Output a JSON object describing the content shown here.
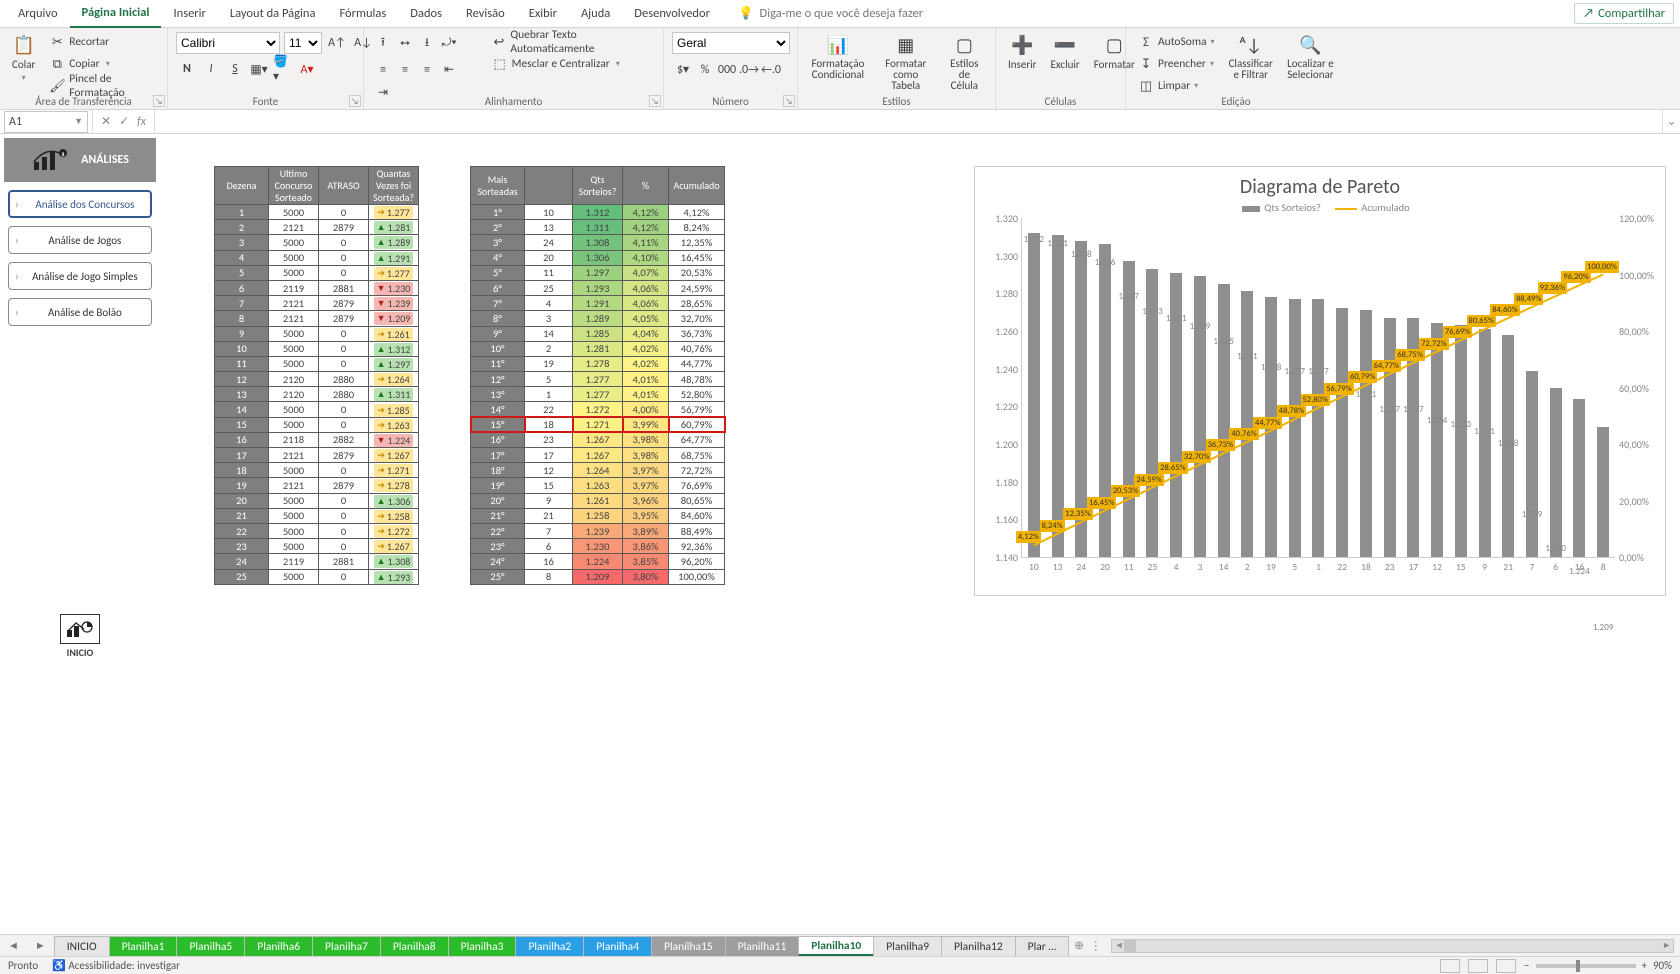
{
  "menu": {
    "items": [
      "Arquivo",
      "Página Inicial",
      "Inserir",
      "Layout da Página",
      "Fórmulas",
      "Dados",
      "Revisão",
      "Exibir",
      "Ajuda",
      "Desenvolvedor"
    ],
    "active_index": 1,
    "tell_me_placeholder": "Diga-me o que você deseja fazer",
    "share_label": "Compartilhar"
  },
  "ribbon": {
    "clipboard": {
      "group": "Área de Transferência",
      "paste": "Colar",
      "cut": "Recortar",
      "copy": "Copiar",
      "painter": "Pincel de Formatação"
    },
    "font": {
      "group": "Fonte",
      "name": "Calibri",
      "size": "11"
    },
    "alignment": {
      "group": "Alinhamento",
      "wrap": "Quebrar Texto Automaticamente",
      "merge": "Mesclar e Centralizar"
    },
    "number": {
      "group": "Número",
      "format": "Geral"
    },
    "styles": {
      "group": "Estilos",
      "cond": "Formatação Condicional",
      "table": "Formatar como Tabela",
      "cell": "Estilos de Célula"
    },
    "cells": {
      "group": "Células",
      "insert": "Inserir",
      "delete": "Excluir",
      "format": "Formatar"
    },
    "editing": {
      "group": "Edição",
      "autosum": "AutoSoma",
      "fill": "Preencher",
      "clear": "Limpar",
      "sort": "Classificar e Filtrar",
      "find": "Localizar e Selecionar"
    }
  },
  "formula_bar": {
    "cell": "A1",
    "value": ""
  },
  "side_panel": {
    "title": "ANÁLISES",
    "buttons": [
      {
        "label": "Análise dos Concursos",
        "active": true
      },
      {
        "label": "Análise de Jogos",
        "active": false
      },
      {
        "label": "Análise de Jogo Simples",
        "active": false
      },
      {
        "label": "Análise de Bolão",
        "active": false
      }
    ],
    "home_label": "INICIO"
  },
  "table_left": {
    "headers": [
      "Dezena",
      "Ultimo Concurso Sorteado",
      "ATRASO",
      "Quantas Vezes foi Sorteada?"
    ],
    "rows": [
      {
        "d": "1",
        "uc": "5000",
        "at": "0",
        "tag": "1.277",
        "dir": "fl"
      },
      {
        "d": "2",
        "uc": "2121",
        "at": "2879",
        "tag": "1.281",
        "dir": "up"
      },
      {
        "d": "3",
        "uc": "5000",
        "at": "0",
        "tag": "1.289",
        "dir": "up"
      },
      {
        "d": "4",
        "uc": "5000",
        "at": "0",
        "tag": "1.291",
        "dir": "up"
      },
      {
        "d": "5",
        "uc": "5000",
        "at": "0",
        "tag": "1.277",
        "dir": "fl"
      },
      {
        "d": "6",
        "uc": "2119",
        "at": "2881",
        "tag": "1.230",
        "dir": "dn"
      },
      {
        "d": "7",
        "uc": "2121",
        "at": "2879",
        "tag": "1.239",
        "dir": "dn"
      },
      {
        "d": "8",
        "uc": "2121",
        "at": "2879",
        "tag": "1.209",
        "dir": "dn"
      },
      {
        "d": "9",
        "uc": "5000",
        "at": "0",
        "tag": "1.261",
        "dir": "fl"
      },
      {
        "d": "10",
        "uc": "5000",
        "at": "0",
        "tag": "1.312",
        "dir": "up"
      },
      {
        "d": "11",
        "uc": "5000",
        "at": "0",
        "tag": "1.297",
        "dir": "up"
      },
      {
        "d": "12",
        "uc": "2120",
        "at": "2880",
        "tag": "1.264",
        "dir": "fl"
      },
      {
        "d": "13",
        "uc": "2120",
        "at": "2880",
        "tag": "1.311",
        "dir": "up"
      },
      {
        "d": "14",
        "uc": "5000",
        "at": "0",
        "tag": "1.285",
        "dir": "fl"
      },
      {
        "d": "15",
        "uc": "5000",
        "at": "0",
        "tag": "1.263",
        "dir": "fl"
      },
      {
        "d": "16",
        "uc": "2118",
        "at": "2882",
        "tag": "1.224",
        "dir": "dn"
      },
      {
        "d": "17",
        "uc": "2121",
        "at": "2879",
        "tag": "1.267",
        "dir": "fl"
      },
      {
        "d": "18",
        "uc": "5000",
        "at": "0",
        "tag": "1.271",
        "dir": "fl"
      },
      {
        "d": "19",
        "uc": "2121",
        "at": "2879",
        "tag": "1.278",
        "dir": "fl"
      },
      {
        "d": "20",
        "uc": "5000",
        "at": "0",
        "tag": "1.306",
        "dir": "up"
      },
      {
        "d": "21",
        "uc": "5000",
        "at": "0",
        "tag": "1.258",
        "dir": "fl"
      },
      {
        "d": "22",
        "uc": "5000",
        "at": "0",
        "tag": "1.272",
        "dir": "fl"
      },
      {
        "d": "23",
        "uc": "5000",
        "at": "0",
        "tag": "1.267",
        "dir": "fl"
      },
      {
        "d": "24",
        "uc": "2119",
        "at": "2881",
        "tag": "1.308",
        "dir": "up"
      },
      {
        "d": "25",
        "uc": "5000",
        "at": "0",
        "tag": "1.293",
        "dir": "up"
      }
    ]
  },
  "table_right": {
    "headers": [
      "Mais Sorteadas",
      "Qts Sorteios?",
      "%",
      "Acumulado"
    ],
    "highlight_rank": "15°",
    "rows": [
      {
        "rk": "1°",
        "d": "10",
        "s": "1.312",
        "p": "4,12%",
        "a": "4,12%",
        "sc": "#63be7b",
        "pc": "#9cd17f",
        "ac": "#ffffff"
      },
      {
        "rk": "2°",
        "d": "13",
        "s": "1.311",
        "p": "4,12%",
        "a": "8,24%",
        "sc": "#67bf7b",
        "pc": "#a0d280",
        "ac": "#ffffff"
      },
      {
        "rk": "3°",
        "d": "24",
        "s": "1.308",
        "p": "4,11%",
        "a": "12,35%",
        "sc": "#73c37c",
        "pc": "#a8d581",
        "ac": "#ffffff"
      },
      {
        "rk": "4°",
        "d": "20",
        "s": "1.306",
        "p": "4,10%",
        "a": "16,45%",
        "sc": "#7ac57c",
        "pc": "#aed882",
        "ac": "#ffffff"
      },
      {
        "rk": "5°",
        "d": "11",
        "s": "1.297",
        "p": "4,07%",
        "a": "20,53%",
        "sc": "#9cd17f",
        "pc": "#c7e184",
        "ac": "#ffffff"
      },
      {
        "rk": "6°",
        "d": "25",
        "s": "1.293",
        "p": "4,06%",
        "a": "24,59%",
        "sc": "#acd780",
        "pc": "#d3e585",
        "ac": "#ffffff"
      },
      {
        "rk": "7°",
        "d": "4",
        "s": "1.291",
        "p": "4,06%",
        "a": "28,65%",
        "sc": "#b4d981",
        "pc": "#d9e786",
        "ac": "#ffffff"
      },
      {
        "rk": "8°",
        "d": "3",
        "s": "1.289",
        "p": "4,05%",
        "a": "32,70%",
        "sc": "#bbdc82",
        "pc": "#dee986",
        "ac": "#ffffff"
      },
      {
        "rk": "9°",
        "d": "14",
        "s": "1.285",
        "p": "4,04%",
        "a": "36,73%",
        "sc": "#cbe184",
        "pc": "#e9ed87",
        "ac": "#ffffff"
      },
      {
        "rk": "10°",
        "d": "2",
        "s": "1.281",
        "p": "4,02%",
        "a": "40,76%",
        "sc": "#dae785",
        "pc": "#f4f187",
        "ac": "#ffffff"
      },
      {
        "rk": "11°",
        "d": "19",
        "s": "1.278",
        "p": "4,02%",
        "a": "44,77%",
        "sc": "#e5eb86",
        "pc": "#fdf387",
        "ac": "#ffffff"
      },
      {
        "rk": "12°",
        "d": "5",
        "s": "1.277",
        "p": "4,01%",
        "a": "48,78%",
        "sc": "#e9ed87",
        "pc": "#fef186",
        "ac": "#ffffff"
      },
      {
        "rk": "13°",
        "d": "1",
        "s": "1.277",
        "p": "4,01%",
        "a": "52,80%",
        "sc": "#e9ed87",
        "pc": "#fef186",
        "ac": "#ffffff"
      },
      {
        "rk": "14°",
        "d": "22",
        "s": "1.272",
        "p": "4,00%",
        "a": "56,79%",
        "sc": "#fdf387",
        "pc": "#feea84",
        "ac": "#ffffff"
      },
      {
        "rk": "15°",
        "d": "18",
        "s": "1.271",
        "p": "3,99%",
        "a": "60,79%",
        "sc": "#fef186",
        "pc": "#fee783",
        "ac": "#ffffff"
      },
      {
        "rk": "16°",
        "d": "23",
        "s": "1.267",
        "p": "3,98%",
        "a": "64,77%",
        "sc": "#fee883",
        "pc": "#fde081",
        "ac": "#ffffff"
      },
      {
        "rk": "17°",
        "d": "17",
        "s": "1.267",
        "p": "3,98%",
        "a": "68,75%",
        "sc": "#fee883",
        "pc": "#fde081",
        "ac": "#ffffff"
      },
      {
        "rk": "18°",
        "d": "12",
        "s": "1.264",
        "p": "3,97%",
        "a": "72,72%",
        "sc": "#fee182",
        "pc": "#fcd980",
        "ac": "#ffffff"
      },
      {
        "rk": "19°",
        "d": "15",
        "s": "1.263",
        "p": "3,97%",
        "a": "76,69%",
        "sc": "#fddf81",
        "pc": "#fcd77f",
        "ac": "#ffffff"
      },
      {
        "rk": "20°",
        "d": "9",
        "s": "1.261",
        "p": "3,96%",
        "a": "80,65%",
        "sc": "#fcda80",
        "pc": "#fcd37e",
        "ac": "#ffffff"
      },
      {
        "rk": "21°",
        "d": "21",
        "s": "1.258",
        "p": "3,95%",
        "a": "84,60%",
        "sc": "#fcd47e",
        "pc": "#fbcc7d",
        "ac": "#ffffff"
      },
      {
        "rk": "22°",
        "d": "7",
        "s": "1.239",
        "p": "3,89%",
        "a": "88,49%",
        "sc": "#f9a978",
        "pc": "#f9a978",
        "ac": "#ffffff"
      },
      {
        "rk": "23°",
        "d": "6",
        "s": "1.230",
        "p": "3,86%",
        "a": "92,36%",
        "sc": "#f99676",
        "pc": "#f99676",
        "ac": "#ffffff"
      },
      {
        "rk": "24°",
        "d": "16",
        "s": "1.224",
        "p": "3,85%",
        "a": "96,20%",
        "sc": "#f88a74",
        "pc": "#f88a74",
        "ac": "#ffffff"
      },
      {
        "rk": "25°",
        "d": "8",
        "s": "1.209",
        "p": "3,80%",
        "a": "100,00%",
        "sc": "#f8696b",
        "pc": "#f8696b",
        "ac": "#ffffff"
      }
    ]
  },
  "chart": {
    "title": "Diagrama de Pareto",
    "legend_bars": "Qts Sorteios?",
    "legend_line": "Acumulado",
    "y_left": {
      "min": 1140,
      "max": 1320,
      "step": 20,
      "labels": [
        "1.140",
        "1.160",
        "1.180",
        "1.200",
        "1.220",
        "1.240",
        "1.260",
        "1.280",
        "1.300",
        "1.320"
      ]
    },
    "y_right": {
      "min": 0,
      "max": 120,
      "step": 20,
      "labels": [
        "0,00%",
        "20,00%",
        "40,00%",
        "60,00%",
        "80,00%",
        "100,00%",
        "120,00%"
      ]
    },
    "bar_color": "#8f8f8f",
    "line_color": "#f2b200",
    "label_bg": "#f2b200",
    "series": [
      {
        "x": "10",
        "bar": 1312,
        "cum": 4.12,
        "cum_label": "4,12%",
        "bar_label": "1.312"
      },
      {
        "x": "13",
        "bar": 1311,
        "cum": 8.24,
        "cum_label": "8,24%",
        "bar_label": "1.311"
      },
      {
        "x": "24",
        "bar": 1308,
        "cum": 12.35,
        "cum_label": "12,35%",
        "bar_label": "1.308"
      },
      {
        "x": "20",
        "bar": 1306,
        "cum": 16.45,
        "cum_label": "16,45%",
        "bar_label": "1.306"
      },
      {
        "x": "11",
        "bar": 1297,
        "cum": 20.53,
        "cum_label": "20,53%",
        "bar_label": "1.297"
      },
      {
        "x": "25",
        "bar": 1293,
        "cum": 24.59,
        "cum_label": "24,59%",
        "bar_label": "1.293"
      },
      {
        "x": "4",
        "bar": 1291,
        "cum": 28.65,
        "cum_label": "28,65%",
        "bar_label": "1.291"
      },
      {
        "x": "3",
        "bar": 1289,
        "cum": 32.7,
        "cum_label": "32,70%",
        "bar_label": "1.289"
      },
      {
        "x": "14",
        "bar": 1285,
        "cum": 36.73,
        "cum_label": "36,73%",
        "bar_label": "1.285"
      },
      {
        "x": "2",
        "bar": 1281,
        "cum": 40.76,
        "cum_label": "40,76%",
        "bar_label": "1.281"
      },
      {
        "x": "19",
        "bar": 1278,
        "cum": 44.77,
        "cum_label": "44,77%",
        "bar_label": "1.278"
      },
      {
        "x": "5",
        "bar": 1277,
        "cum": 48.78,
        "cum_label": "48,78%",
        "bar_label": "1.277"
      },
      {
        "x": "1",
        "bar": 1277,
        "cum": 52.8,
        "cum_label": "52,80%",
        "bar_label": "1.277"
      },
      {
        "x": "22",
        "bar": 1272,
        "cum": 56.79,
        "cum_label": "56,79%",
        "bar_label": "1.272"
      },
      {
        "x": "18",
        "bar": 1271,
        "cum": 60.79,
        "cum_label": "60,79%",
        "bar_label": "1.271"
      },
      {
        "x": "23",
        "bar": 1267,
        "cum": 64.77,
        "cum_label": "64,77%",
        "bar_label": "1.267"
      },
      {
        "x": "17",
        "bar": 1267,
        "cum": 68.75,
        "cum_label": "68,75%",
        "bar_label": "1.267"
      },
      {
        "x": "12",
        "bar": 1264,
        "cum": 72.72,
        "cum_label": "72,72%",
        "bar_label": "1.264"
      },
      {
        "x": "15",
        "bar": 1263,
        "cum": 76.69,
        "cum_label": "76,69%",
        "bar_label": "1.263"
      },
      {
        "x": "9",
        "bar": 1261,
        "cum": 80.65,
        "cum_label": "80,65%",
        "bar_label": "1.261"
      },
      {
        "x": "21",
        "bar": 1258,
        "cum": 84.6,
        "cum_label": "84,60%",
        "bar_label": "1.258"
      },
      {
        "x": "7",
        "bar": 1239,
        "cum": 88.49,
        "cum_label": "88,49%",
        "bar_label": "1.239"
      },
      {
        "x": "6",
        "bar": 1230,
        "cum": 92.36,
        "cum_label": "92,36%",
        "bar_label": "1.230"
      },
      {
        "x": "16",
        "bar": 1224,
        "cum": 96.2,
        "cum_label": "96,20%",
        "bar_label": "1.224"
      },
      {
        "x": "8",
        "bar": 1209,
        "cum": 100.0,
        "cum_label": "100,00%",
        "bar_label": "1.209"
      }
    ]
  },
  "tabs": {
    "items": [
      {
        "label": "INICIO",
        "color": "plain"
      },
      {
        "label": "Planilha1",
        "color": "green"
      },
      {
        "label": "Planilha5",
        "color": "green"
      },
      {
        "label": "Planilha6",
        "color": "green"
      },
      {
        "label": "Planilha7",
        "color": "green"
      },
      {
        "label": "Planilha8",
        "color": "green"
      },
      {
        "label": "Planilha3",
        "color": "green"
      },
      {
        "label": "Planilha2",
        "color": "blue"
      },
      {
        "label": "Planilha4",
        "color": "blue"
      },
      {
        "label": "Planilha15",
        "color": "gray"
      },
      {
        "label": "Planilha11",
        "color": "gray"
      },
      {
        "label": "Planilha10",
        "color": "active"
      },
      {
        "label": "Planilha9",
        "color": "plain"
      },
      {
        "label": "Planilha12",
        "color": "plain"
      },
      {
        "label": "Plar …",
        "color": "plain"
      }
    ]
  },
  "status": {
    "ready": "Pronto",
    "access": "Acessibilidade: investigar",
    "zoom": "90%"
  }
}
